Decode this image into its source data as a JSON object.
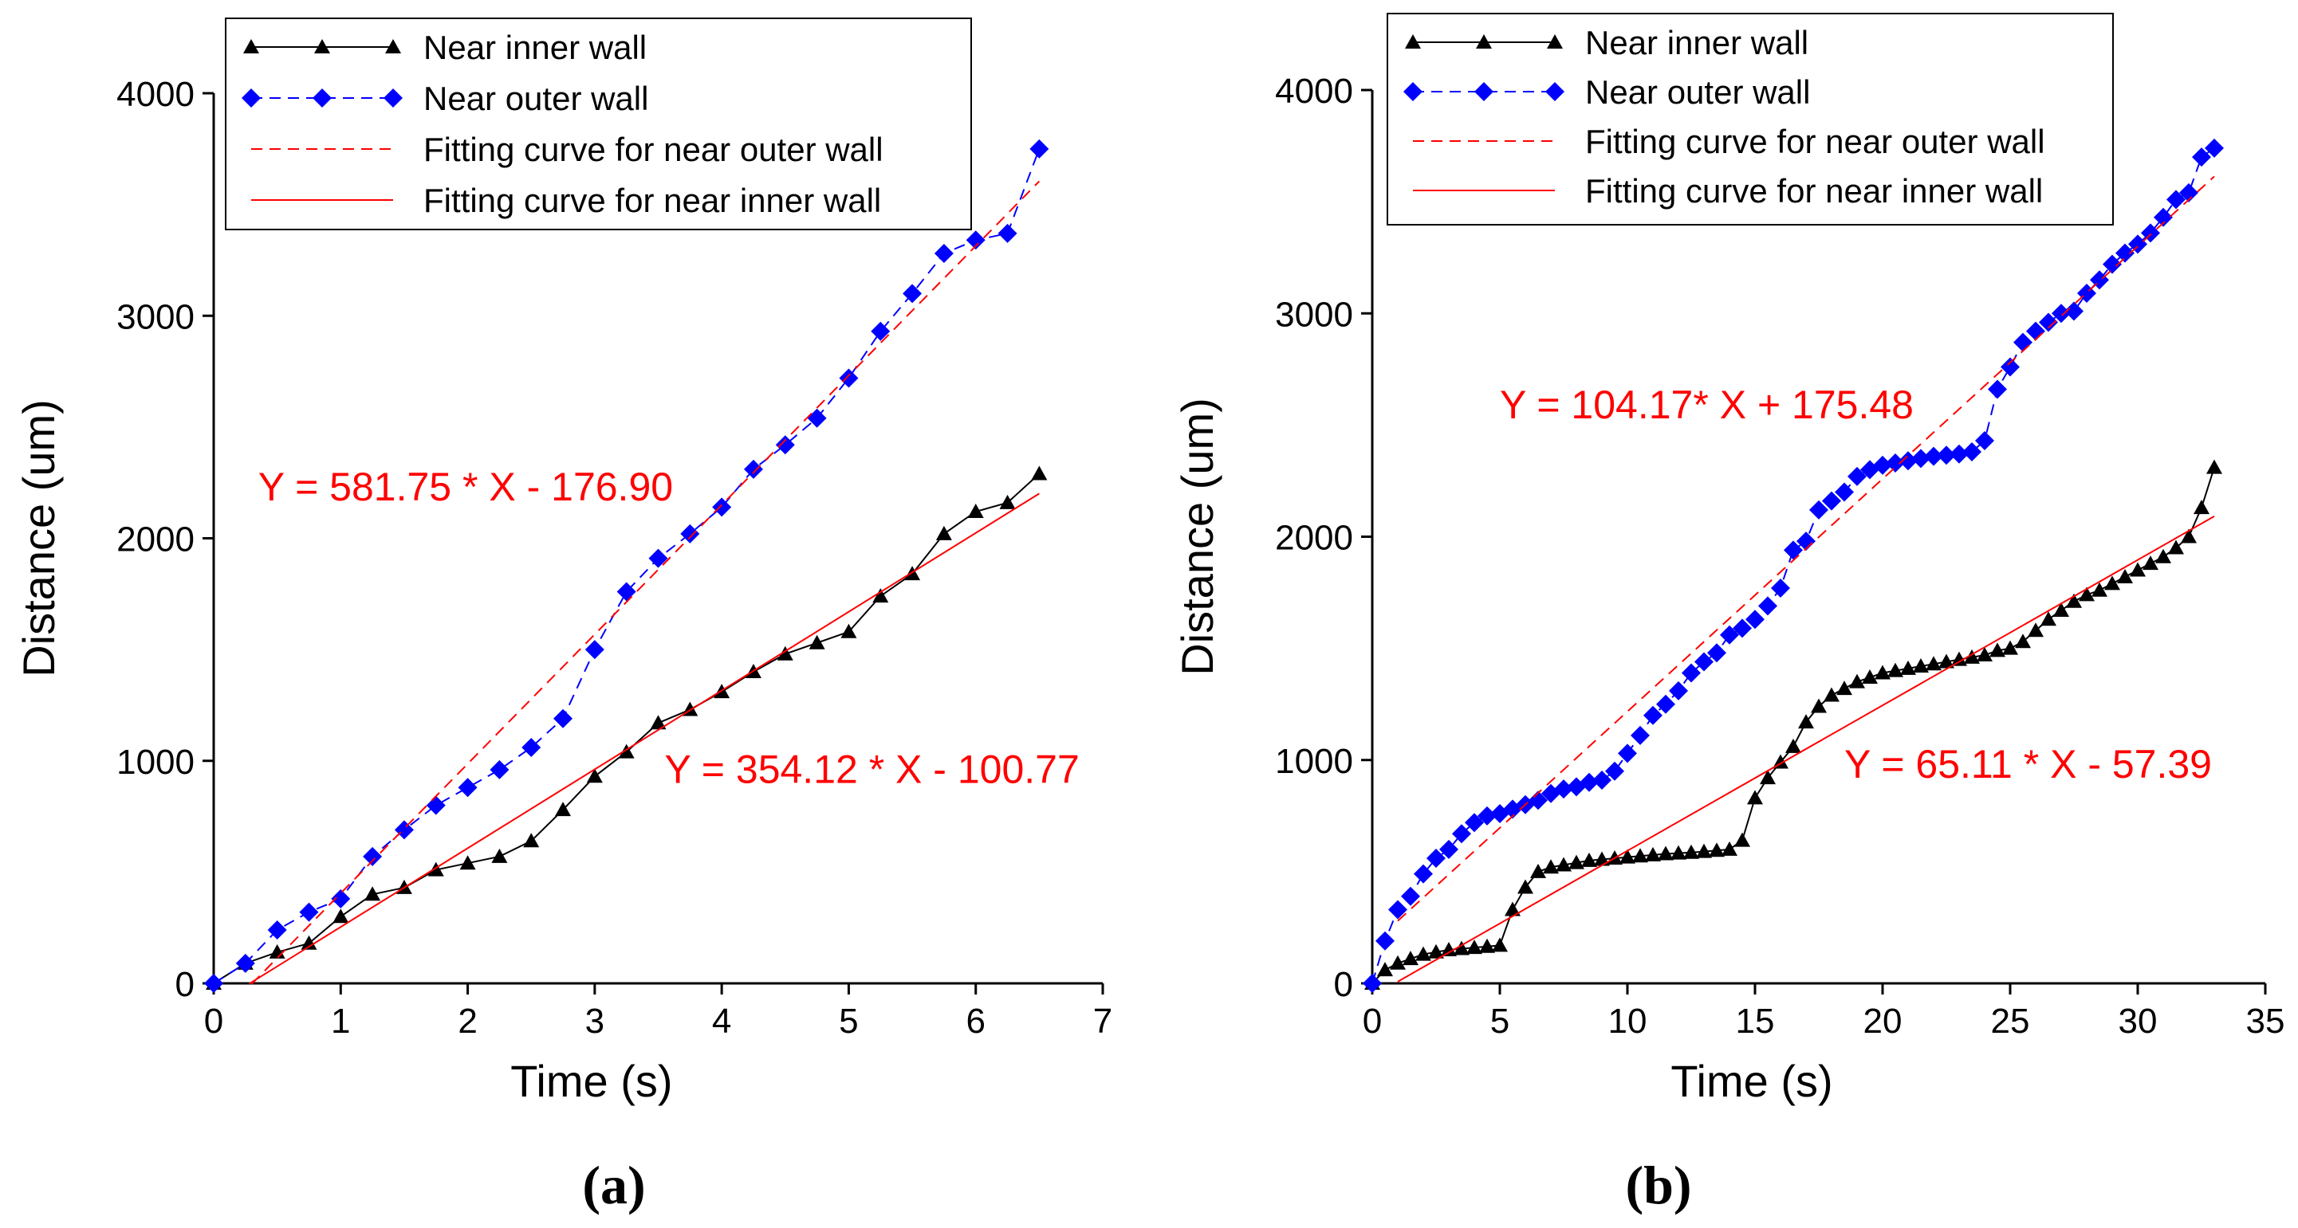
{
  "chart_data": [
    {
      "panel_label": "(a)",
      "type": "line",
      "xlabel": "Time (s)",
      "ylabel": "Distance (um)",
      "xlim": [
        0,
        7
      ],
      "ylim": [
        0,
        4000
      ],
      "xticks": [
        0,
        1,
        2,
        3,
        4,
        5,
        6,
        7
      ],
      "yticks": [
        0,
        1000,
        2000,
        3000,
        4000
      ],
      "legend_position": "top",
      "series": [
        {
          "name": "Near inner wall",
          "color": "#000000",
          "marker": "triangle",
          "line": "solid",
          "x": [
            0,
            0.25,
            0.5,
            0.75,
            1.0,
            1.25,
            1.5,
            1.75,
            2.0,
            2.25,
            2.5,
            2.75,
            3.0,
            3.25,
            3.5,
            3.75,
            4.0,
            4.25,
            4.5,
            4.75,
            5.0,
            5.25,
            5.5,
            5.75,
            6.0,
            6.25,
            6.5
          ],
          "y": [
            0,
            90,
            140,
            180,
            300,
            400,
            430,
            510,
            540,
            570,
            640,
            780,
            930,
            1040,
            1170,
            1230,
            1310,
            1400,
            1480,
            1530,
            1580,
            1740,
            1840,
            2020,
            2120,
            2160,
            2290
          ]
        },
        {
          "name": "Near outer wall",
          "color": "#0000ff",
          "marker": "diamond",
          "line": "dashed",
          "x": [
            0,
            0.25,
            0.5,
            0.75,
            1.0,
            1.25,
            1.5,
            1.75,
            2.0,
            2.25,
            2.5,
            2.75,
            3.0,
            3.25,
            3.5,
            3.75,
            4.0,
            4.25,
            4.5,
            4.75,
            5.0,
            5.25,
            5.5,
            5.75,
            6.0,
            6.25,
            6.5
          ],
          "y": [
            0,
            90,
            240,
            320,
            380,
            570,
            690,
            800,
            880,
            960,
            1060,
            1190,
            1500,
            1760,
            1910,
            2020,
            2140,
            2310,
            2420,
            2540,
            2720,
            2930,
            3100,
            3280,
            3340,
            3370,
            3750
          ]
        },
        {
          "name": "Fitting curve for near outer wall",
          "color": "#ff0000",
          "line": "dashed",
          "fit": {
            "slope": 581.75,
            "intercept": -176.9
          },
          "x_range": [
            0.3,
            6.5
          ]
        },
        {
          "name": "Fitting curve for near inner wall",
          "color": "#ff0000",
          "line": "solid",
          "fit": {
            "slope": 354.12,
            "intercept": -100.77
          },
          "x_range": [
            0.28,
            6.5
          ]
        }
      ],
      "annotations": [
        {
          "text": "Y = 581.75 * X - 176.90",
          "x": 0.35,
          "y": 2170
        },
        {
          "text": "Y = 354.12 * X - 100.77",
          "x": 3.55,
          "y": 900
        }
      ]
    },
    {
      "panel_label": "(b)",
      "type": "line",
      "xlabel": "Time (s)",
      "ylabel": "Distance (um)",
      "xlim": [
        0,
        35
      ],
      "ylim": [
        0,
        4000
      ],
      "xticks": [
        0,
        5,
        10,
        15,
        20,
        25,
        30,
        35
      ],
      "yticks": [
        0,
        1000,
        2000,
        3000,
        4000
      ],
      "legend_position": "top",
      "series": [
        {
          "name": "Near inner wall",
          "color": "#000000",
          "marker": "triangle",
          "line": "solid",
          "x": [
            0,
            0.5,
            1,
            1.5,
            2,
            2.5,
            3,
            3.5,
            4,
            4.5,
            5,
            5.5,
            6,
            6.5,
            7,
            7.5,
            8,
            8.5,
            9,
            9.5,
            10,
            10.5,
            11,
            11.5,
            12,
            12.5,
            13,
            13.5,
            14,
            14.5,
            15,
            15.5,
            16,
            16.5,
            17,
            17.5,
            18,
            18.5,
            19,
            19.5,
            20,
            20.5,
            21,
            21.5,
            22,
            22.5,
            23,
            23.5,
            24,
            24.5,
            25,
            25.5,
            26,
            26.5,
            27,
            27.5,
            28,
            28.5,
            29,
            29.5,
            30,
            30.5,
            31,
            31.5,
            32,
            32.5,
            33
          ],
          "y": [
            0,
            60,
            90,
            110,
            130,
            140,
            150,
            155,
            160,
            165,
            170,
            330,
            430,
            500,
            520,
            530,
            540,
            550,
            555,
            560,
            565,
            570,
            575,
            580,
            583,
            586,
            590,
            595,
            600,
            640,
            830,
            920,
            990,
            1060,
            1170,
            1240,
            1290,
            1320,
            1350,
            1370,
            1390,
            1400,
            1410,
            1420,
            1430,
            1440,
            1450,
            1460,
            1470,
            1490,
            1500,
            1530,
            1580,
            1630,
            1670,
            1710,
            1740,
            1760,
            1790,
            1820,
            1850,
            1880,
            1910,
            1950,
            2000,
            2130,
            2310
          ]
        },
        {
          "name": "Near outer wall",
          "color": "#0000ff",
          "marker": "diamond",
          "line": "dashed",
          "x": [
            0,
            0.5,
            1,
            1.5,
            2,
            2.5,
            3,
            3.5,
            4,
            4.5,
            5,
            5.5,
            6,
            6.5,
            7,
            7.5,
            8,
            8.5,
            9,
            9.5,
            10,
            10.5,
            11,
            11.5,
            12,
            12.5,
            13,
            13.5,
            14,
            14.5,
            15,
            15.5,
            16,
            16.5,
            17,
            17.5,
            18,
            18.5,
            19,
            19.5,
            20,
            20.5,
            21,
            21.5,
            22,
            22.5,
            23,
            23.5,
            24,
            24.5,
            25,
            25.5,
            26,
            26.5,
            27,
            27.5,
            28,
            28.5,
            29,
            29.5,
            30,
            30.5,
            31,
            31.5,
            32,
            32.5,
            33
          ],
          "y": [
            0,
            190,
            330,
            390,
            490,
            560,
            600,
            670,
            720,
            750,
            760,
            780,
            800,
            820,
            850,
            870,
            880,
            900,
            910,
            950,
            1030,
            1110,
            1200,
            1250,
            1310,
            1390,
            1440,
            1480,
            1560,
            1590,
            1630,
            1690,
            1770,
            1940,
            1980,
            2120,
            2160,
            2200,
            2270,
            2300,
            2320,
            2330,
            2340,
            2350,
            2360,
            2365,
            2370,
            2380,
            2430,
            2660,
            2760,
            2870,
            2920,
            2960,
            3000,
            3010,
            3090,
            3150,
            3220,
            3270,
            3310,
            3360,
            3430,
            3510,
            3540,
            3700,
            3740
          ]
        },
        {
          "name": "Fitting curve for near outer wall",
          "color": "#ff0000",
          "line": "dashed",
          "fit": {
            "slope": 104.17,
            "intercept": 175.48
          },
          "x_range": [
            1,
            33
          ]
        },
        {
          "name": "Fitting curve for near inner wall",
          "color": "#ff0000",
          "line": "solid",
          "fit": {
            "slope": 65.11,
            "intercept": -57.39
          },
          "x_range": [
            1,
            33
          ]
        }
      ],
      "annotations": [
        {
          "text": "Y = 104.17* X + 175.48",
          "x": 5.0,
          "y": 2530
        },
        {
          "text": "Y = 65.11 * X - 57.39",
          "x": 18.5,
          "y": 920
        }
      ]
    }
  ]
}
